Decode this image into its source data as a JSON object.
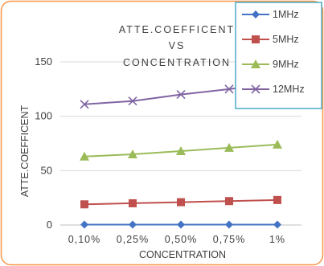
{
  "chart_data": {
    "type": "line",
    "title_lines": [
      "ATTE.COEFFICENT",
      "VS",
      "CONCENTRATION"
    ],
    "xlabel": "CONCENTRATION",
    "ylabel": "ATTE.COEFFICENT",
    "categories": [
      "0,10%",
      "0,25%",
      "0,50%",
      "0,75%",
      "1%"
    ],
    "ylim": [
      0,
      150
    ],
    "yticks": [
      "0",
      "50",
      "100",
      "150"
    ],
    "grid": "horizontal",
    "legend_position": "top-right",
    "series": [
      {
        "name": "1MHz",
        "values": [
          0.4,
          0.4,
          0.4,
          0.4,
          0.4
        ],
        "color": "#4472C4",
        "marker": "diamond"
      },
      {
        "name": "5MHz",
        "values": [
          19,
          20,
          21,
          22,
          23
        ],
        "color": "#C0504D",
        "marker": "square"
      },
      {
        "name": "9MHz",
        "values": [
          63,
          65,
          68,
          71,
          74
        ],
        "color": "#9BBB59",
        "marker": "triangle"
      },
      {
        "name": "12MHz",
        "values": [
          111,
          114,
          120,
          125,
          130
        ],
        "color": "#8064A2",
        "marker": "x"
      }
    ]
  },
  "colors": {
    "frame": "#F79646",
    "gridline": "#D9D9D9",
    "legend_border": "#4BACC6"
  }
}
